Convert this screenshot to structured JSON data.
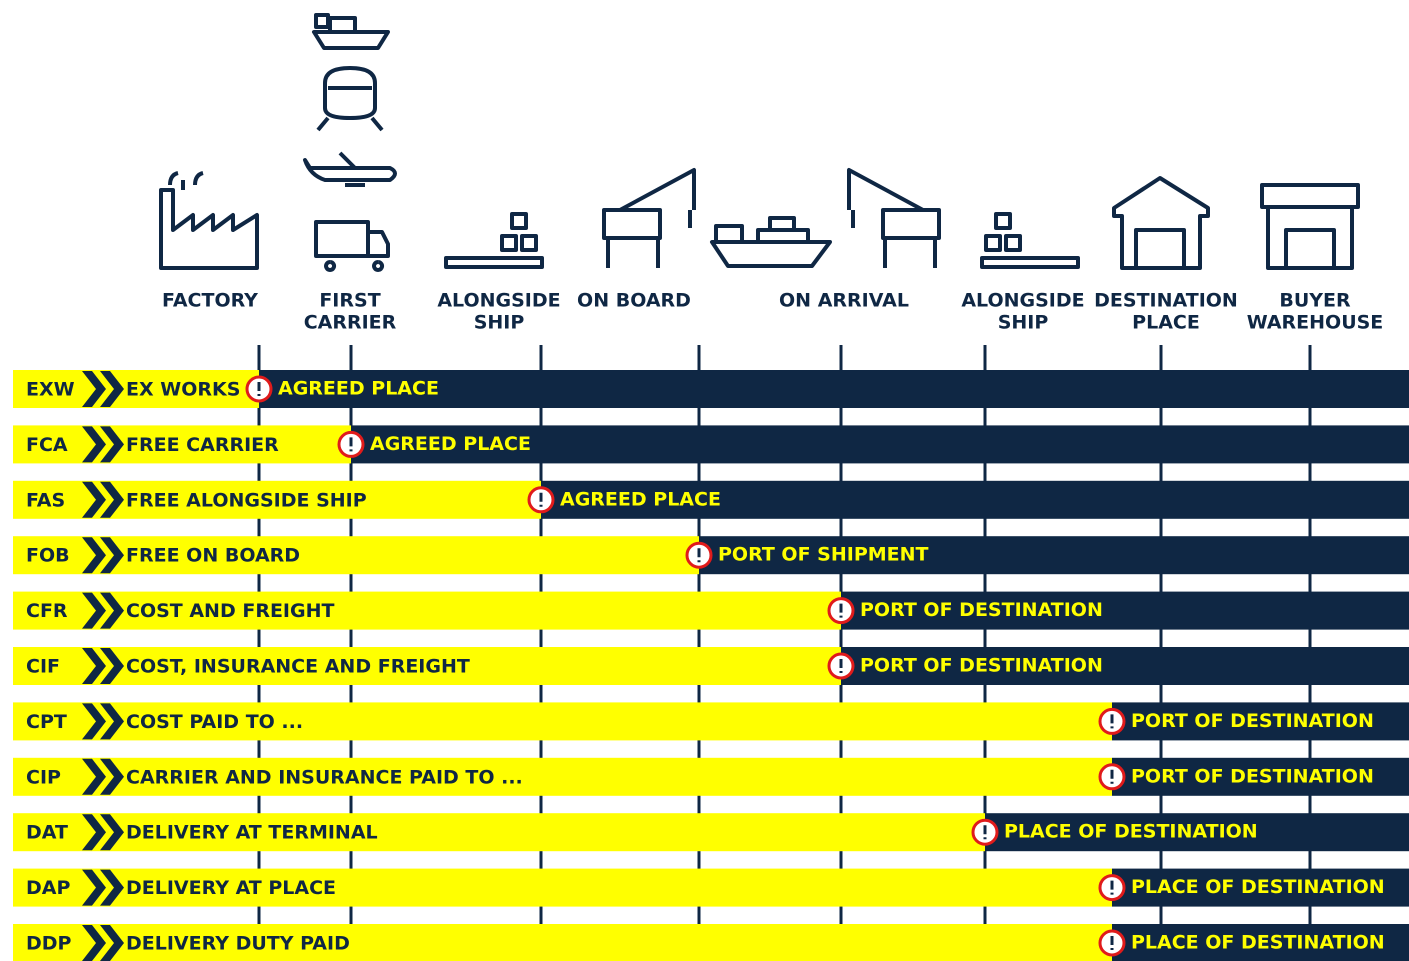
{
  "stations": [
    {
      "lines": [
        "FACTORY"
      ]
    },
    {
      "lines": [
        "FIRST",
        "CARRIER"
      ]
    },
    {
      "lines": [
        "ALONGSIDE",
        "SHIP"
      ]
    },
    {
      "lines": [
        "ON BOARD"
      ]
    },
    {
      "lines": [
        "ON ARRIVAL"
      ]
    },
    {
      "lines": [
        "ALONGSIDE",
        "SHIP"
      ]
    },
    {
      "lines": [
        "DESTINATION",
        "PLACE"
      ]
    },
    {
      "lines": [
        "BUYER",
        "WAREHOUSE"
      ]
    }
  ],
  "rows": [
    {
      "code": "EXW",
      "name": "EX WORKS",
      "place": "AGREED PLACE"
    },
    {
      "code": "FCA",
      "name": "FREE CARRIER",
      "place": "AGREED PLACE"
    },
    {
      "code": "FAS",
      "name": "FREE ALONGSIDE SHIP",
      "place": "AGREED PLACE"
    },
    {
      "code": "FOB",
      "name": "FREE ON BOARD",
      "place": "PORT OF SHIPMENT"
    },
    {
      "code": "CFR",
      "name": "COST AND FREIGHT",
      "place": "PORT OF DESTINATION"
    },
    {
      "code": "CIF",
      "name": "COST, INSURANCE AND FREIGHT",
      "place": "PORT OF DESTINATION"
    },
    {
      "code": "CPT",
      "name": "COST PAID TO ...",
      "place": "PORT OF DESTINATION"
    },
    {
      "code": "CIP",
      "name": "CARRIER AND INSURANCE PAID TO ...",
      "place": "PORT OF DESTINATION"
    },
    {
      "code": "DAT",
      "name": "DELIVERY AT TERMINAL",
      "place": "PLACE OF DESTINATION"
    },
    {
      "code": "DAP",
      "name": "DELIVERY AT PLACE",
      "place": "PLACE OF DESTINATION"
    },
    {
      "code": "DDP",
      "name": "DELIVERY DUTY PAID",
      "place": "PLACE OF DESTINATION"
    }
  ]
}
